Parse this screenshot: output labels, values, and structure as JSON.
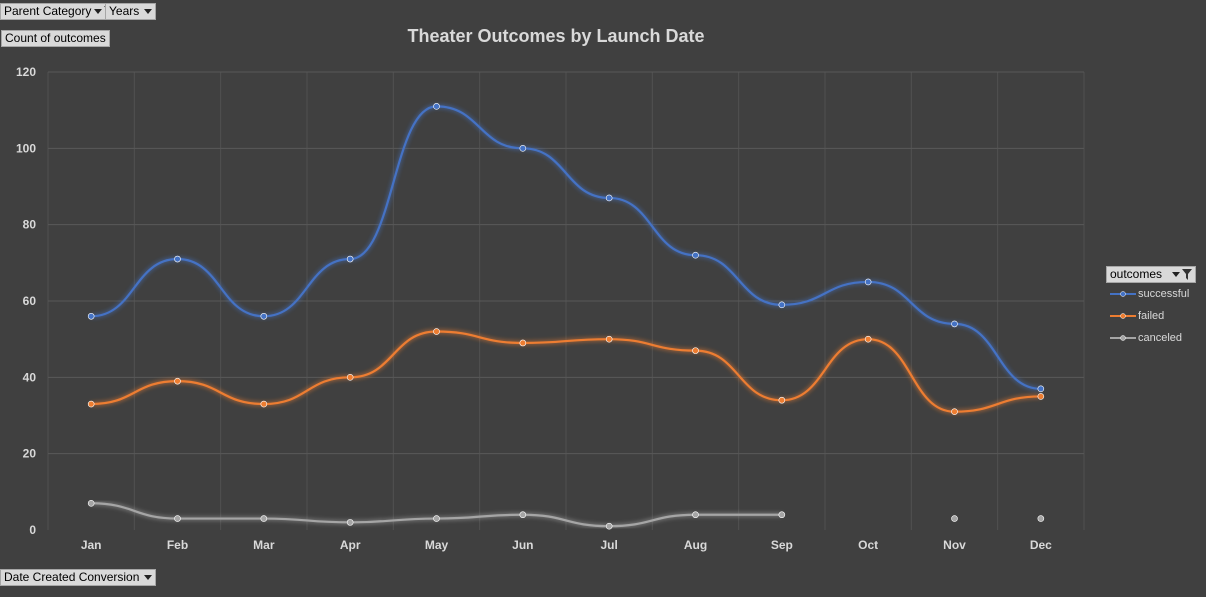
{
  "filters": {
    "parent_category": "Parent Category",
    "years": "Years",
    "value_field": "Count of outcomes",
    "axis_field": "Date Created Conversion",
    "legend_field": "outcomes"
  },
  "colors": {
    "background": "#404040",
    "successful": "#4472c4",
    "failed": "#ed7d31",
    "canceled": "#a5a5a5",
    "grid": "#595959",
    "text": "#d9d9d9"
  },
  "chart_data": {
    "type": "line",
    "title": "Theater Outcomes by Launch Date",
    "xlabel": "",
    "ylabel": "",
    "categories": [
      "Jan",
      "Feb",
      "Mar",
      "Apr",
      "May",
      "Jun",
      "Jul",
      "Aug",
      "Sep",
      "Oct",
      "Nov",
      "Dec"
    ],
    "ylim": [
      0,
      120
    ],
    "yticks": [
      0,
      20,
      40,
      60,
      80,
      100,
      120
    ],
    "grid": true,
    "legend_position": "right",
    "series": [
      {
        "name": "successful",
        "values": [
          56,
          71,
          56,
          71,
          111,
          100,
          87,
          72,
          59,
          65,
          54,
          37
        ]
      },
      {
        "name": "failed",
        "values": [
          33,
          39,
          33,
          40,
          52,
          49,
          50,
          47,
          34,
          50,
          31,
          35
        ]
      },
      {
        "name": "canceled",
        "values": [
          7,
          3,
          3,
          2,
          3,
          4,
          1,
          4,
          4,
          null,
          3,
          3
        ]
      }
    ]
  }
}
